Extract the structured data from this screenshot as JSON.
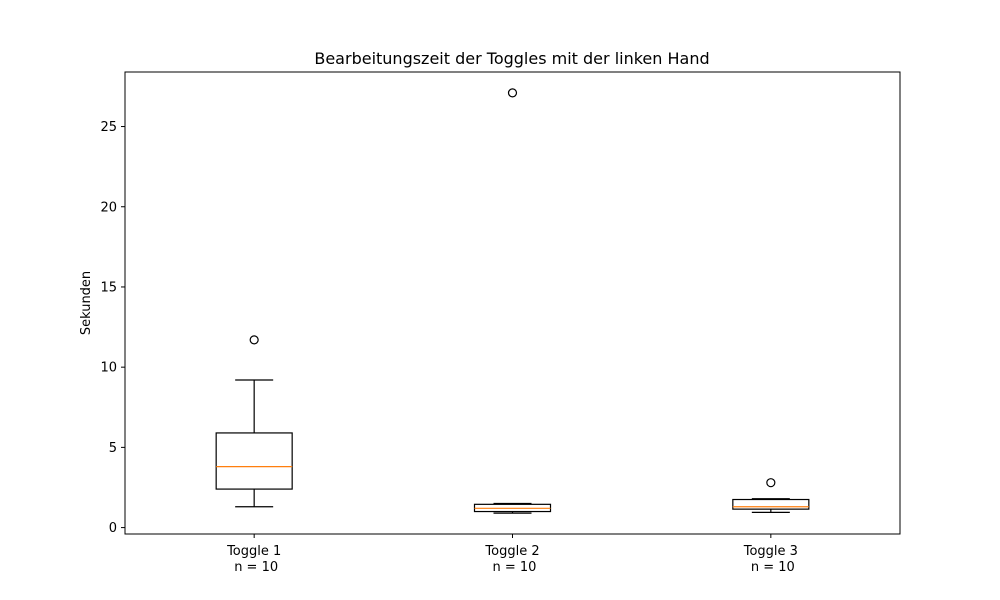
{
  "chart_data": {
    "type": "boxplot",
    "title": "Bearbeitungszeit der Toggles mit der linken Hand",
    "xlabel": "",
    "ylabel": "Sekunden",
    "ylim": [
      -0.4,
      28.4
    ],
    "yticks": [
      0,
      5,
      10,
      15,
      20,
      25
    ],
    "grid": false,
    "categories": [
      "Toggle 1\nn = 10",
      "Toggle 2\nn = 10",
      "Toggle 3\nn = 10"
    ],
    "boxes": [
      {
        "category": "Toggle 1",
        "n_label": "n = 10",
        "whisker_low": 1.3,
        "q1": 2.4,
        "median": 3.8,
        "q3": 5.9,
        "whisker_high": 9.2,
        "outliers": [
          11.7
        ]
      },
      {
        "category": "Toggle 2",
        "n_label": "n = 10",
        "whisker_low": 0.9,
        "q1": 1.0,
        "median": 1.2,
        "q3": 1.45,
        "whisker_high": 1.5,
        "outliers": [
          27.1
        ]
      },
      {
        "category": "Toggle 3",
        "n_label": "n = 10",
        "whisker_low": 0.95,
        "q1": 1.15,
        "median": 1.3,
        "q3": 1.75,
        "whisker_high": 1.8,
        "outliers": [
          2.8
        ]
      }
    ],
    "colors": {
      "box": "#000000",
      "median": "#ff7f0e",
      "outlier": "#000000"
    }
  }
}
